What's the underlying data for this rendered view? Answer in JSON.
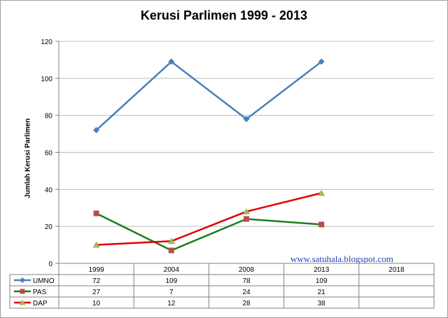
{
  "chart_data": {
    "type": "line",
    "title": "Kerusi Parlimen  1999 - 2013",
    "xlabel": "",
    "ylabel": "Jumlah Kerusi Parlimen",
    "ylim": [
      0,
      120
    ],
    "yticks": [
      0,
      20,
      40,
      60,
      80,
      100,
      120
    ],
    "categories": [
      "1999",
      "2004",
      "2008",
      "2013",
      "2018"
    ],
    "grid": "horizontal",
    "legend": "data-table",
    "series": [
      {
        "name": "UMNO",
        "values": [
          72,
          109,
          78,
          109,
          null
        ],
        "color": "#4a7ebb",
        "marker": "diamond"
      },
      {
        "name": "PAS",
        "values": [
          27,
          7,
          24,
          21,
          null
        ],
        "color": "#1e7b1e",
        "marker": "square",
        "marker_color": "#be4b48"
      },
      {
        "name": "DAP",
        "values": [
          10,
          12,
          28,
          38,
          null
        ],
        "color": "#e00000",
        "marker": "triangle",
        "marker_color": "#9bbb59"
      }
    ],
    "annotations": [
      "www.satuhala.blogspot.com"
    ]
  }
}
